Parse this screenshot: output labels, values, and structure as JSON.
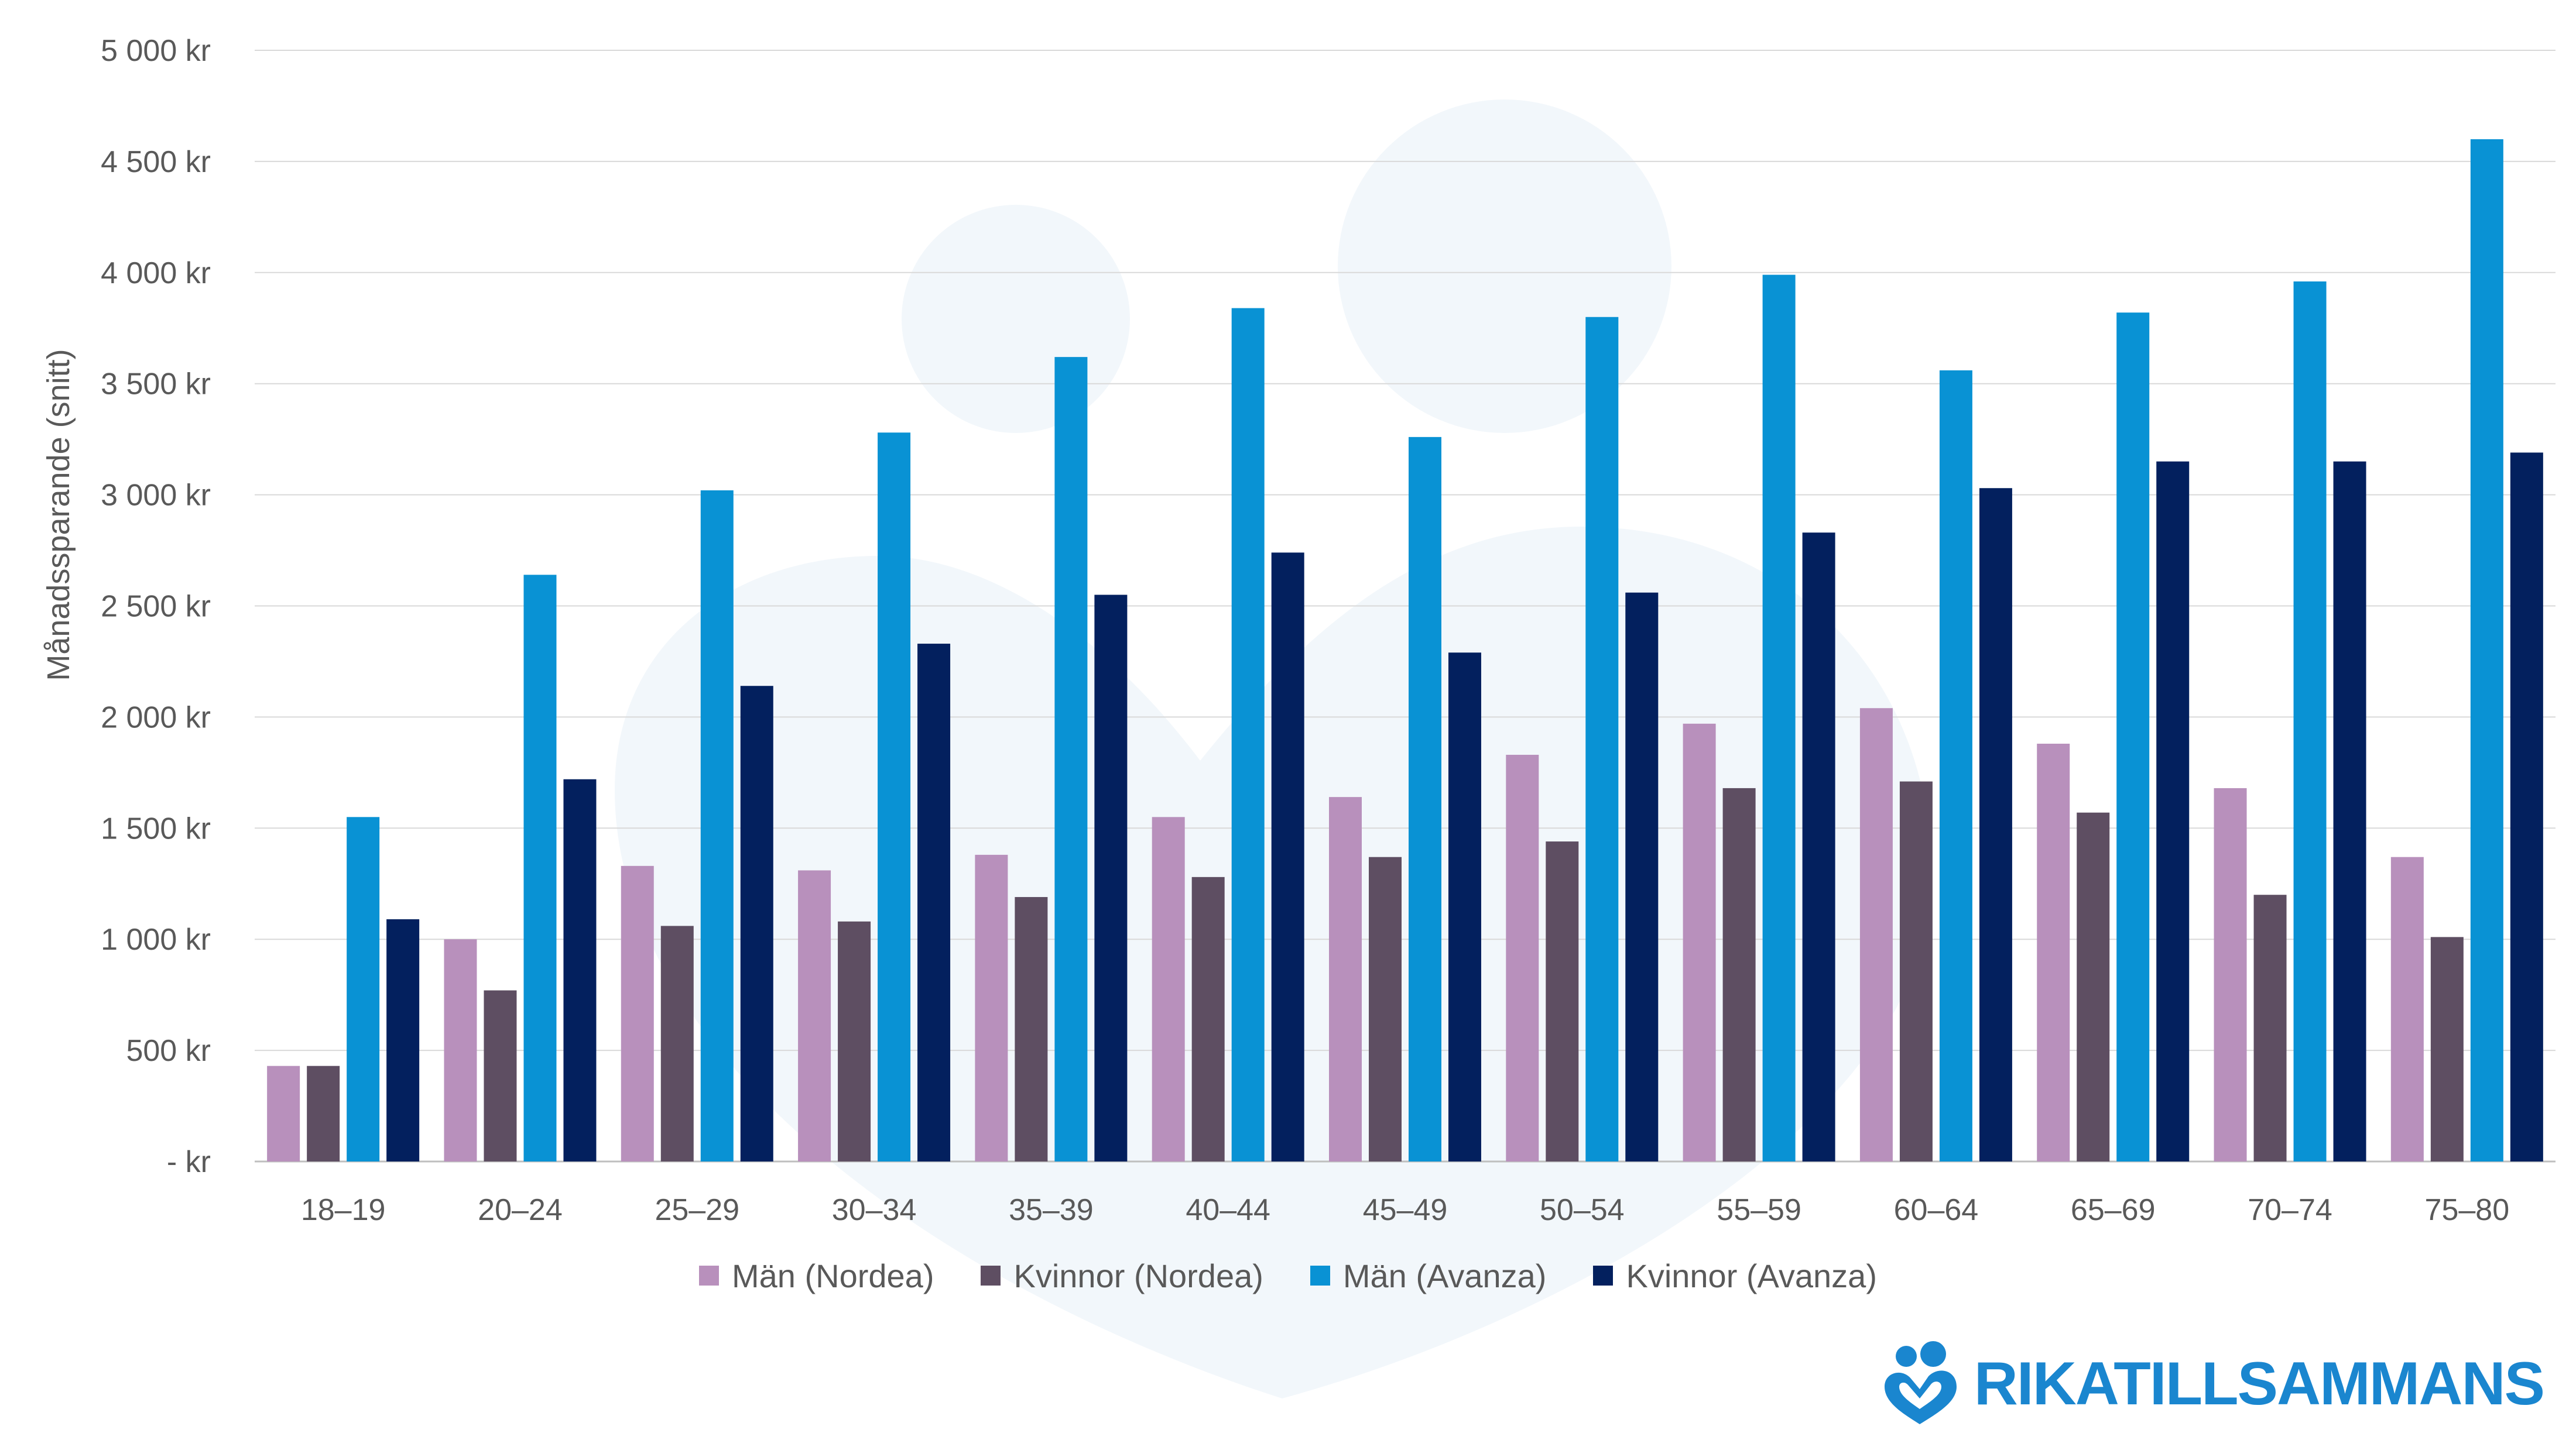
{
  "chart_data": {
    "type": "bar",
    "ylabel": "Månadssparande (snitt)",
    "xlabel": "",
    "ylim": [
      0,
      5000
    ],
    "yticks": [
      0,
      500,
      1000,
      1500,
      2000,
      2500,
      3000,
      3500,
      4000,
      4500,
      5000
    ],
    "ytick_labels": [
      "-   kr",
      "500 kr",
      "1 000 kr",
      "1 500 kr",
      "2 000 kr",
      "2 500 kr",
      "3 000 kr",
      "3 500 kr",
      "4 000 kr",
      "4 500 kr",
      "5 000 kr"
    ],
    "categories": [
      "18–19",
      "20–24",
      "25–29",
      "30–34",
      "35–39",
      "40–44",
      "45–49",
      "50–54",
      "55–59",
      "60–64",
      "65–69",
      "70–74",
      "75–80"
    ],
    "series": [
      {
        "name": "Män (Nordea)",
        "color": "#b890bc",
        "values": [
          430,
          1000,
          1330,
          1310,
          1380,
          1550,
          1640,
          1830,
          1970,
          2040,
          1880,
          1680,
          1370
        ]
      },
      {
        "name": "Kvinnor (Nordea)",
        "color": "#5e4e62",
        "values": [
          430,
          770,
          1060,
          1080,
          1190,
          1280,
          1370,
          1440,
          1680,
          1710,
          1570,
          1200,
          1010
        ]
      },
      {
        "name": "Män (Avanza)",
        "color": "#0992d4",
        "values": [
          1550,
          2640,
          3020,
          3280,
          3620,
          3840,
          3260,
          3800,
          3990,
          3560,
          3820,
          3960,
          4600
        ]
      },
      {
        "name": "Kvinnor (Avanza)",
        "color": "#03205e",
        "values": [
          1090,
          1720,
          2140,
          2330,
          2550,
          2740,
          2290,
          2560,
          2830,
          3030,
          3150,
          3150,
          3190
        ]
      }
    ],
    "grid": true,
    "legend_position": "bottom"
  },
  "branding": {
    "logo_text": "RIKATILLSAMMANS",
    "logo_color": "#1a86cf",
    "icon": "family-heart-icon"
  },
  "colors": {
    "axis_text": "#595959",
    "gridline": "#d9d9d9",
    "watermark": "#eef5fa"
  }
}
